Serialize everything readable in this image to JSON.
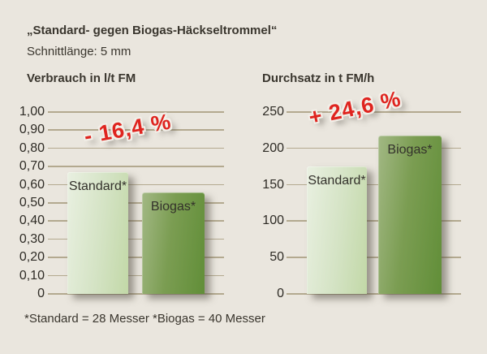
{
  "page": {
    "title": "„Standard- gegen Biogas-Häckseltrommel“",
    "subtitle": "Schnittlänge: 5 mm",
    "footnote": "*Standard = 28 Messer *Biogas = 40 Messer"
  },
  "colors": {
    "background": "#eae6de",
    "grid_line": "#b3a98f",
    "heading_text": "#3a362e",
    "axis_text": "#2e2b25",
    "bar_label_text": "#33312b",
    "accent_red": "#df241f",
    "standard_bar_light": "#e9f0e1",
    "standard_bar_mid": "#d4e3c4",
    "standard_bar_dark": "#c2d8a7",
    "biogas_bar_light": "#a2b884",
    "biogas_bar_mid": "#7b9d52",
    "biogas_bar_dark": "#618e38"
  },
  "chart_data": [
    {
      "type": "bar",
      "title": "Verbrauch in l/t FM",
      "categories": [
        "Standard*",
        "Biogas*"
      ],
      "values": [
        0.67,
        0.56
      ],
      "ylim": [
        0,
        1.0
      ],
      "ytick_step": 0.1,
      "ytick_labels": [
        "0",
        "0,10",
        "0,20",
        "0,30",
        "0,40",
        "0,50",
        "0,60",
        "0,70",
        "0,80",
        "0,90",
        "1,00"
      ],
      "annotation": "- 16,4 %",
      "grid": true,
      "legend": "none",
      "xlabel": "",
      "ylabel": "Verbrauch in l/t FM"
    },
    {
      "type": "bar",
      "title": "Durchsatz in t FM/h",
      "categories": [
        "Standard*",
        "Biogas*"
      ],
      "values": [
        175,
        218
      ],
      "ylim": [
        0,
        250
      ],
      "ytick_step": 50,
      "ytick_labels": [
        "0",
        "50",
        "100",
        "150",
        "200",
        "250"
      ],
      "annotation": "+ 24,6 %",
      "grid": true,
      "legend": "none",
      "xlabel": "",
      "ylabel": "Durchsatz in t FM/h"
    }
  ]
}
